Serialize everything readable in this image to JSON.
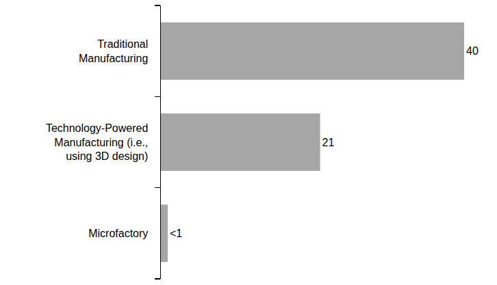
{
  "chart_data": {
    "type": "bar",
    "orientation": "horizontal",
    "categories": [
      "Traditional Manufacturing",
      "Technology-Powered Manufacturing (i.e., using 3D design)",
      "Microfactory"
    ],
    "values": [
      40,
      21,
      0.9
    ],
    "value_labels": [
      "40",
      "21",
      "<1"
    ],
    "color": "#a6a6a6",
    "xlim": [
      0,
      40
    ],
    "data_labels": true,
    "tick_labels": "y",
    "grid": false
  }
}
